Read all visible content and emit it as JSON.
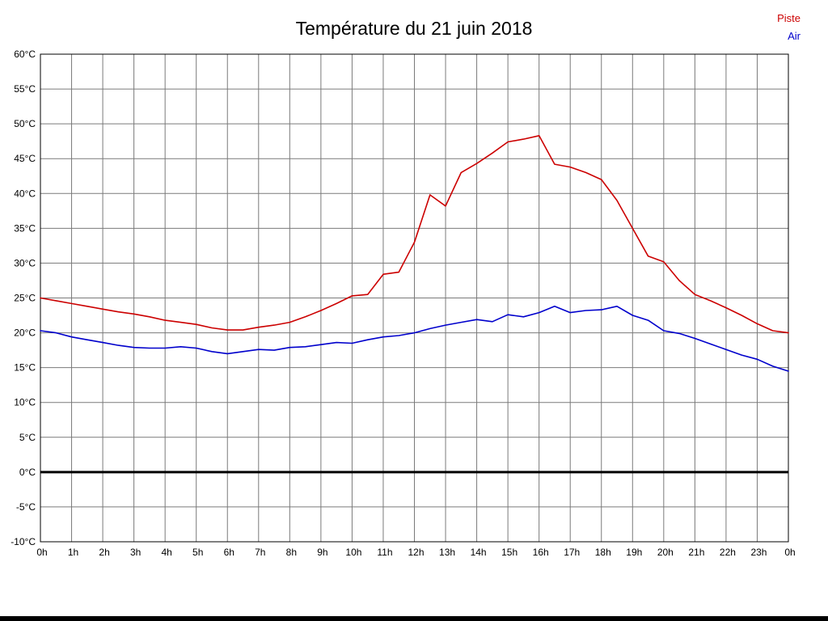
{
  "chart_data": {
    "type": "line",
    "title": "Température du 21 juin 2018",
    "xlabel": "",
    "ylabel": "",
    "xlim": [
      0,
      24
    ],
    "ylim": [
      -10,
      60
    ],
    "grid": true,
    "legend_position": "top-right",
    "zero_line": {
      "value": 0,
      "color": "#000000",
      "width": 3
    },
    "x_tick_values": [
      0,
      1,
      2,
      3,
      4,
      5,
      6,
      7,
      8,
      9,
      10,
      11,
      12,
      13,
      14,
      15,
      16,
      17,
      18,
      19,
      20,
      21,
      22,
      23,
      24
    ],
    "x_tick_labels": [
      "0h",
      "1h",
      "2h",
      "3h",
      "4h",
      "5h",
      "6h",
      "7h",
      "8h",
      "9h",
      "10h",
      "11h",
      "12h",
      "13h",
      "14h",
      "15h",
      "16h",
      "17h",
      "18h",
      "19h",
      "20h",
      "21h",
      "22h",
      "23h",
      "0h"
    ],
    "y_tick_values": [
      60,
      55,
      50,
      45,
      40,
      35,
      30,
      25,
      20,
      15,
      10,
      5,
      0,
      -5,
      -10
    ],
    "y_tick_labels": [
      "60°C",
      "55°C",
      "50°C",
      "45°C",
      "40°C",
      "35°C",
      "30°C",
      "25°C",
      "20°C",
      "15°C",
      "10°C",
      "5°C",
      "0°C",
      "-5°C",
      "-10°C"
    ],
    "x": [
      0,
      0.5,
      1,
      1.5,
      2,
      2.5,
      3,
      3.5,
      4,
      4.5,
      5,
      5.5,
      6,
      6.5,
      7,
      7.5,
      8,
      8.5,
      9,
      9.5,
      10,
      10.5,
      11,
      11.5,
      12,
      12.5,
      13,
      13.5,
      14,
      14.5,
      15,
      15.5,
      16,
      16.5,
      17,
      17.5,
      18,
      18.5,
      19,
      19.5,
      20,
      20.5,
      21,
      21.5,
      22,
      22.5,
      23,
      23.5,
      24
    ],
    "series": [
      {
        "name": "Piste",
        "color": "#cc0000",
        "values": [
          25.0,
          24.6,
          24.2,
          23.8,
          23.4,
          23.0,
          22.7,
          22.3,
          21.8,
          21.5,
          21.2,
          20.7,
          20.4,
          20.4,
          20.8,
          21.1,
          21.5,
          22.3,
          23.2,
          24.2,
          25.3,
          25.5,
          28.4,
          28.7,
          33.0,
          39.8,
          38.2,
          43.0,
          44.3,
          45.8,
          47.4,
          47.8,
          48.3,
          44.2,
          43.8,
          43.0,
          42.0,
          39.0,
          35.0,
          31.0,
          30.2,
          27.5,
          25.5,
          24.6,
          23.6,
          22.5,
          21.3,
          20.3,
          20.0
        ]
      },
      {
        "name": "Air",
        "color": "#0000cc",
        "values": [
          20.3,
          20.0,
          19.4,
          19.0,
          18.6,
          18.2,
          17.9,
          17.8,
          17.8,
          18.0,
          17.8,
          17.3,
          17.0,
          17.3,
          17.6,
          17.5,
          17.9,
          18.0,
          18.3,
          18.6,
          18.5,
          19.0,
          19.4,
          19.6,
          20.0,
          20.6,
          21.1,
          21.5,
          21.9,
          21.6,
          22.6,
          22.3,
          22.9,
          23.8,
          22.9,
          23.2,
          23.3,
          23.8,
          22.5,
          21.8,
          20.3,
          19.9,
          19.2,
          18.4,
          17.6,
          16.8,
          16.2,
          15.2,
          14.5
        ]
      }
    ]
  },
  "legend": {
    "piste_label": "Piste",
    "air_label": "Air"
  },
  "styles": {
    "grid_color": "#7a7a7a",
    "border_color": "#000000",
    "tick_label_color": "#000000"
  }
}
